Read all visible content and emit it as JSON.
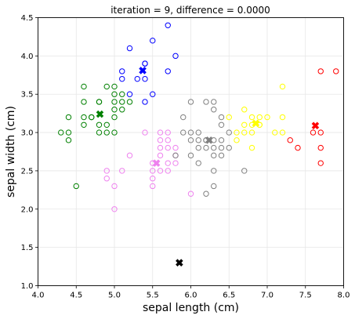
{
  "chart_data": {
    "type": "scatter",
    "title": "iteration = 9, difference = 0.0000",
    "xlabel": "sepal length (cm)",
    "ylabel": "sepal width (cm)",
    "xlim": [
      4.0,
      8.0
    ],
    "ylim": [
      1.0,
      4.5
    ],
    "xticks": [
      "4.0",
      "4.5",
      "5.0",
      "5.5",
      "6.0",
      "6.5",
      "7.0",
      "7.5",
      "8.0"
    ],
    "yticks": [
      "1.0",
      "1.5",
      "2.0",
      "2.5",
      "3.0",
      "3.5",
      "4.0",
      "4.5"
    ],
    "grid": true,
    "marker": "open-circle",
    "centroid_marker": "X",
    "clusters": [
      {
        "color": "#008000",
        "points": [
          [
            4.3,
            3.0
          ],
          [
            4.4,
            2.9
          ],
          [
            4.4,
            3.0
          ],
          [
            4.4,
            3.2
          ],
          [
            4.5,
            2.3
          ],
          [
            4.6,
            3.1
          ],
          [
            4.6,
            3.2
          ],
          [
            4.6,
            3.4
          ],
          [
            4.6,
            3.6
          ],
          [
            4.7,
            3.2
          ],
          [
            4.8,
            3.0
          ],
          [
            4.8,
            3.1
          ],
          [
            4.8,
            3.4
          ],
          [
            4.9,
            3.0
          ],
          [
            4.9,
            3.1
          ],
          [
            4.9,
            3.6
          ],
          [
            5.0,
            3.0
          ],
          [
            5.0,
            3.2
          ],
          [
            5.0,
            3.3
          ],
          [
            5.0,
            3.4
          ],
          [
            5.0,
            3.5
          ],
          [
            5.0,
            3.6
          ],
          [
            5.1,
            3.3
          ],
          [
            5.1,
            3.4
          ],
          [
            5.1,
            3.5
          ],
          [
            4.7,
            3.2
          ],
          [
            4.8,
            3.4
          ],
          [
            5.2,
            3.4
          ]
        ],
        "centroid": [
          4.81,
          3.24
        ]
      },
      {
        "color": "#0000ff",
        "points": [
          [
            5.1,
            3.7
          ],
          [
            5.1,
            3.8
          ],
          [
            5.2,
            3.5
          ],
          [
            5.2,
            4.1
          ],
          [
            5.3,
            3.7
          ],
          [
            5.4,
            3.4
          ],
          [
            5.4,
            3.7
          ],
          [
            5.4,
            3.9
          ],
          [
            5.5,
            3.5
          ],
          [
            5.5,
            4.2
          ],
          [
            5.7,
            3.8
          ],
          [
            5.7,
            4.4
          ],
          [
            5.8,
            4.0
          ],
          [
            5.4,
            3.9
          ]
        ],
        "centroid": [
          5.37,
          3.81
        ]
      },
      {
        "color": "#ee82ee",
        "points": [
          [
            4.9,
            2.4
          ],
          [
            4.9,
            2.5
          ],
          [
            5.0,
            2.0
          ],
          [
            5.0,
            2.3
          ],
          [
            5.1,
            2.5
          ],
          [
            5.2,
            2.7
          ],
          [
            5.4,
            3.0
          ],
          [
            5.5,
            2.3
          ],
          [
            5.5,
            2.4
          ],
          [
            5.5,
            2.5
          ],
          [
            5.5,
            2.6
          ],
          [
            5.6,
            2.5
          ],
          [
            5.6,
            2.7
          ],
          [
            5.6,
            2.8
          ],
          [
            5.6,
            2.9
          ],
          [
            5.6,
            3.0
          ],
          [
            5.7,
            2.5
          ],
          [
            5.7,
            2.6
          ],
          [
            5.7,
            2.8
          ],
          [
            5.7,
            2.9
          ],
          [
            5.7,
            3.0
          ],
          [
            5.8,
            2.6
          ],
          [
            5.8,
            2.7
          ],
          [
            5.8,
            2.8
          ],
          [
            6.0,
            2.2
          ]
        ],
        "centroid": [
          5.55,
          2.6
        ]
      },
      {
        "color": "#808080",
        "points": [
          [
            5.8,
            2.7
          ],
          [
            5.9,
            3.0
          ],
          [
            5.9,
            3.2
          ],
          [
            6.0,
            2.7
          ],
          [
            6.0,
            2.9
          ],
          [
            6.0,
            3.0
          ],
          [
            6.0,
            3.4
          ],
          [
            6.1,
            2.6
          ],
          [
            6.1,
            2.8
          ],
          [
            6.1,
            2.9
          ],
          [
            6.1,
            3.0
          ],
          [
            6.2,
            2.2
          ],
          [
            6.2,
            2.8
          ],
          [
            6.2,
            2.9
          ],
          [
            6.2,
            3.4
          ],
          [
            6.3,
            2.3
          ],
          [
            6.3,
            2.5
          ],
          [
            6.3,
            2.7
          ],
          [
            6.3,
            2.8
          ],
          [
            6.3,
            2.9
          ],
          [
            6.3,
            3.3
          ],
          [
            6.3,
            3.4
          ],
          [
            6.4,
            2.7
          ],
          [
            6.4,
            2.8
          ],
          [
            6.4,
            2.9
          ],
          [
            6.4,
            3.1
          ],
          [
            6.4,
            3.2
          ],
          [
            6.5,
            2.8
          ],
          [
            6.5,
            3.0
          ],
          [
            6.7,
            2.5
          ],
          [
            6.2,
            2.9
          ]
        ],
        "centroid": [
          6.24,
          2.9
        ]
      },
      {
        "color": "#ffff00",
        "points": [
          [
            6.5,
            3.2
          ],
          [
            6.6,
            2.9
          ],
          [
            6.6,
            3.0
          ],
          [
            6.7,
            3.0
          ],
          [
            6.7,
            3.1
          ],
          [
            6.7,
            3.3
          ],
          [
            6.8,
            2.8
          ],
          [
            6.8,
            3.0
          ],
          [
            6.8,
            3.2
          ],
          [
            6.9,
            3.1
          ],
          [
            6.9,
            3.2
          ],
          [
            7.0,
            3.2
          ],
          [
            7.1,
            3.0
          ],
          [
            7.2,
            3.0
          ],
          [
            7.2,
            3.2
          ],
          [
            7.2,
            3.6
          ],
          [
            6.9,
            3.1
          ],
          [
            6.8,
            3.1
          ]
        ],
        "centroid": [
          6.85,
          3.12
        ]
      },
      {
        "color": "#ff0000",
        "points": [
          [
            7.3,
            2.9
          ],
          [
            7.4,
            2.8
          ],
          [
            7.6,
            3.0
          ],
          [
            7.7,
            2.6
          ],
          [
            7.7,
            2.8
          ],
          [
            7.7,
            3.0
          ],
          [
            7.7,
            3.8
          ],
          [
            7.9,
            3.8
          ]
        ],
        "centroid": [
          7.63,
          3.09
        ]
      },
      {
        "color": "#000000",
        "points": [],
        "centroid": [
          5.85,
          1.3
        ]
      }
    ]
  }
}
